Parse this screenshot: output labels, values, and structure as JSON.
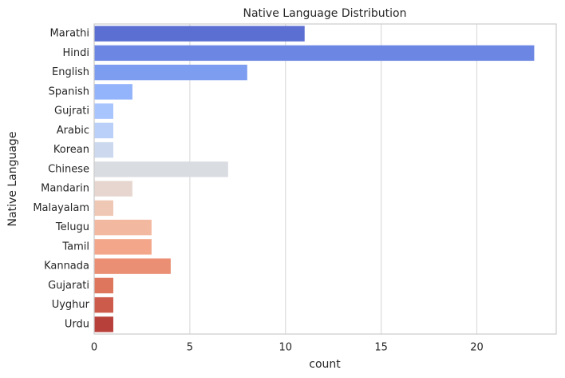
{
  "chart_data": {
    "type": "barh",
    "title": "Native Language Distribution",
    "x_label": "count",
    "y_label": "Native Language",
    "categories": [
      "Marathi",
      "Hindi",
      "English",
      "Spanish",
      "Gujrati",
      "Arabic",
      "Korean",
      "Chinese",
      "Mandarin",
      "Malayalam",
      "Telugu",
      "Tamil",
      "Kannada",
      "Gujarati",
      "Uyghur",
      "Urdu"
    ],
    "values": [
      11,
      23,
      8,
      2,
      1,
      1,
      1,
      7,
      2,
      1,
      3,
      3,
      4,
      1,
      1,
      1
    ],
    "colors": [
      "#5a6fd1",
      "#6b86e3",
      "#7d9df1",
      "#93b4fa",
      "#a8c5fd",
      "#bad0f8",
      "#cbd8ee",
      "#d9dce1",
      "#e6d6cf",
      "#efc8b5",
      "#f3b9a0",
      "#f3a68a",
      "#ea8f73",
      "#dd765d",
      "#cd5b4b",
      "#b8403a"
    ],
    "xlim": [
      0,
      24.15
    ],
    "xticks": [
      0,
      5,
      10,
      15,
      20
    ],
    "grid": true
  }
}
